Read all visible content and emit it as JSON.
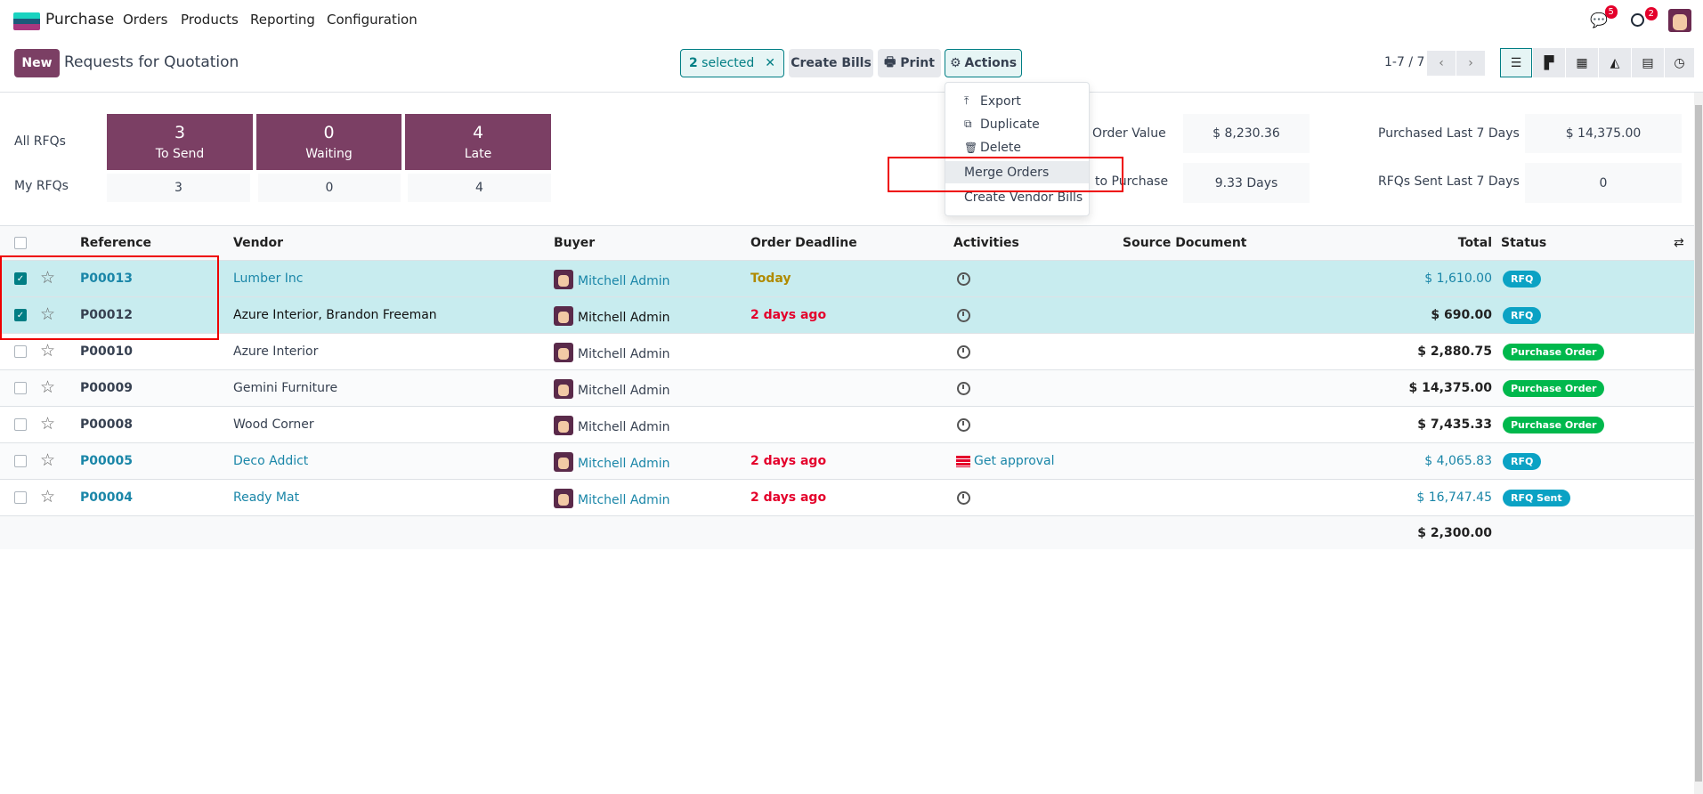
{
  "nav": {
    "app": "Purchase",
    "menus": [
      "Orders",
      "Products",
      "Reporting",
      "Configuration"
    ],
    "messages_count": "5",
    "activities_count": "2"
  },
  "control": {
    "new_label": "New",
    "title": "Requests for Quotation",
    "selected": {
      "count": "2",
      "label": "selected"
    },
    "create_bills": "Create Bills",
    "print": "Print",
    "actions": "Actions",
    "pager": "1-7 / 7"
  },
  "actions_menu": [
    "Export",
    "Duplicate",
    "Delete",
    "Merge Orders",
    "Create Vendor Bills"
  ],
  "dashboard": {
    "row_labels": [
      "All RFQs",
      "My RFQs"
    ],
    "tiles": [
      {
        "value": "3",
        "label": "To Send",
        "mine": "3"
      },
      {
        "value": "0",
        "label": "Waiting",
        "mine": "0"
      },
      {
        "value": "4",
        "label": "Late",
        "mine": "4"
      }
    ],
    "stats": [
      {
        "label": "Order Value",
        "value": "$ 8,230.36"
      },
      {
        "label": "to Purchase",
        "value": "9.33 Days"
      },
      {
        "label": "Purchased Last 7 Days",
        "value": "$ 14,375.00"
      },
      {
        "label": "RFQs Sent Last 7 Days",
        "value": "0"
      }
    ]
  },
  "table": {
    "headers": [
      "Reference",
      "Vendor",
      "Buyer",
      "Order Deadline",
      "Activities",
      "Source Document",
      "Total",
      "Status"
    ],
    "rows": [
      {
        "ref": "P00013",
        "vendor": "Lumber Inc",
        "buyer": "Mitchell Admin",
        "deadline": "Today",
        "activity": "",
        "total": "$ 1,610.00",
        "status": "RFQ",
        "selected": true
      },
      {
        "ref": "P00012",
        "vendor": "Azure Interior, Brandon Freeman",
        "buyer": "Mitchell Admin",
        "deadline": "2 days ago",
        "activity": "",
        "total": "$ 690.00",
        "status": "RFQ",
        "selected": true
      },
      {
        "ref": "P00010",
        "vendor": "Azure Interior",
        "buyer": "Mitchell Admin",
        "deadline": "",
        "activity": "",
        "total": "$ 2,880.75",
        "status": "Purchase Order",
        "selected": false
      },
      {
        "ref": "P00009",
        "vendor": "Gemini Furniture",
        "buyer": "Mitchell Admin",
        "deadline": "",
        "activity": "",
        "total": "$ 14,375.00",
        "status": "Purchase Order",
        "selected": false
      },
      {
        "ref": "P00008",
        "vendor": "Wood Corner",
        "buyer": "Mitchell Admin",
        "deadline": "",
        "activity": "",
        "total": "$ 7,435.33",
        "status": "Purchase Order",
        "selected": false
      },
      {
        "ref": "P00005",
        "vendor": "Deco Addict",
        "buyer": "Mitchell Admin",
        "deadline": "2 days ago",
        "activity": "Get approval",
        "total": "$ 4,065.83",
        "status": "RFQ",
        "selected": false
      },
      {
        "ref": "P00004",
        "vendor": "Ready Mat",
        "buyer": "Mitchell Admin",
        "deadline": "2 days ago",
        "activity": "",
        "total": "$ 16,747.45",
        "status": "RFQ Sent",
        "selected": false
      }
    ],
    "sum_total": "$ 2,300.00"
  },
  "colors": {
    "brand": "#7b3f64",
    "selected_row": "#c8ecef",
    "link": "#1a86a8",
    "rfq": "#0ba2c4",
    "purchase_order": "#00b84c",
    "late": "#e4002b",
    "today": "#b08a00"
  }
}
